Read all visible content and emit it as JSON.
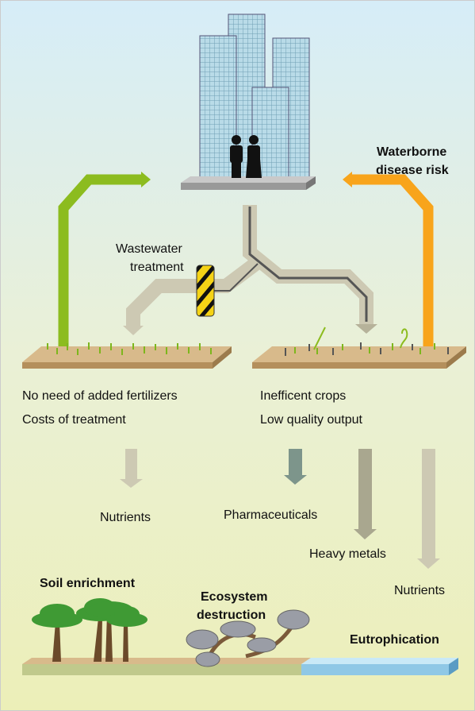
{
  "city": {
    "risk_label": [
      "Waterborne",
      "disease risk"
    ]
  },
  "treatment": {
    "label": [
      "Wastewater",
      "treatment"
    ]
  },
  "left_field": {
    "notes": [
      "No need of added fertilizers",
      "Costs of treatment"
    ]
  },
  "right_field": {
    "notes": [
      "Inefficent crops",
      "Low quality output"
    ]
  },
  "flows": [
    {
      "label": "Nutrients"
    },
    {
      "label": "Pharmaceuticals"
    },
    {
      "label": "Heavy metals"
    },
    {
      "label": "Nutrients"
    }
  ],
  "outcomes": [
    {
      "label": [
        "Soil enrichment"
      ]
    },
    {
      "label": [
        "Ecosystem",
        "destruction"
      ]
    },
    {
      "label": [
        "Eutrophication"
      ]
    }
  ]
}
